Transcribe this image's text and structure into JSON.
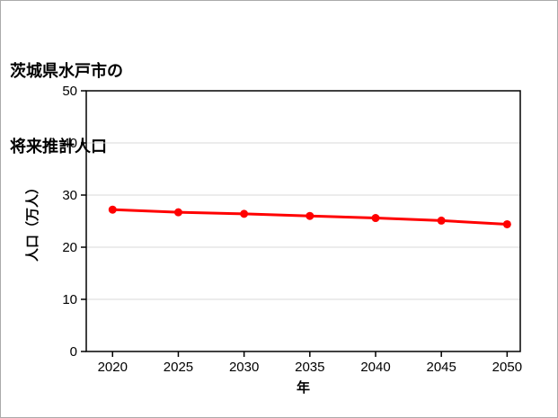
{
  "page": {
    "background": "#ffffff",
    "border_color": "#ababab"
  },
  "title": {
    "line1": "茨城県水戸市の",
    "line2": "将来推計人口"
  },
  "chart_data": {
    "type": "line",
    "title": "茨城県水戸市の将来推計人口",
    "xlabel": "年",
    "ylabel": "人口（万人）",
    "x": [
      2020,
      2025,
      2030,
      2035,
      2040,
      2045,
      2050
    ],
    "series": [
      {
        "name": "将来推計人口",
        "values": [
          27.2,
          26.7,
          26.4,
          26.0,
          25.6,
          25.1,
          24.4
        ],
        "color": "#ff0000",
        "marker": "circle"
      }
    ],
    "xlim": [
      2018,
      2051
    ],
    "ylim": [
      0,
      50
    ],
    "xticks": [
      2020,
      2025,
      2030,
      2035,
      2040,
      2045,
      2050
    ],
    "yticks": [
      0,
      10,
      20,
      30,
      40,
      50
    ],
    "grid": "horizontal",
    "grid_color": "#d9d9d9",
    "axis_color": "#000000",
    "legend": "none"
  }
}
